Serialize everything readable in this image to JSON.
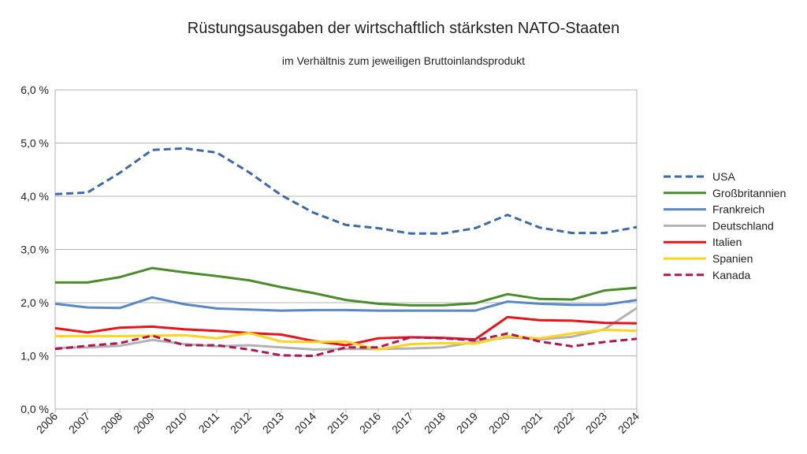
{
  "chart_data": {
    "type": "line",
    "title": "Rüstungsausgaben der wirtschaftlich stärksten NATO-Staaten",
    "subtitle": "im Verhältnis zum jeweiligen Bruttoinlandsprodukt",
    "xlabel": "",
    "ylabel": "",
    "x": [
      "2006",
      "2007",
      "2008",
      "2009",
      "2010",
      "2011",
      "2012",
      "2013",
      "2014",
      "2015",
      "2016",
      "2017",
      "2018",
      "2019",
      "2020",
      "2021",
      "2022",
      "2023",
      "2024"
    ],
    "ylim": [
      0,
      6
    ],
    "y_ticks": [
      0,
      1,
      2,
      3,
      4,
      5,
      6
    ],
    "y_tick_labels": [
      "0,0 %",
      "1,0 %",
      "2,0 %",
      "3,0 %",
      "4,0 %",
      "5,0 %",
      "6,0 %"
    ],
    "y_tick_labels_alt": {
      "4": "4.0 %",
      "5": "5.0 %"
    },
    "grid": "horizontal",
    "legend_position": "right",
    "series": [
      {
        "name": "USA",
        "color": "#3c69a8",
        "dashed": true,
        "values": [
          4.04,
          4.07,
          4.44,
          4.87,
          4.9,
          4.82,
          4.45,
          4.02,
          3.69,
          3.46,
          3.4,
          3.3,
          3.3,
          3.4,
          3.65,
          3.41,
          3.31,
          3.31,
          3.42
        ]
      },
      {
        "name": "Großbritannien",
        "color": "#4a8c2a",
        "dashed": false,
        "values": [
          2.38,
          2.38,
          2.48,
          2.65,
          2.57,
          2.5,
          2.42,
          2.29,
          2.18,
          2.05,
          1.98,
          1.95,
          1.95,
          1.99,
          2.16,
          2.07,
          2.06,
          2.23,
          2.28
        ]
      },
      {
        "name": "Frankreich",
        "color": "#5a87c5",
        "dashed": false,
        "values": [
          1.98,
          1.91,
          1.9,
          2.1,
          1.97,
          1.89,
          1.87,
          1.85,
          1.86,
          1.86,
          1.85,
          1.85,
          1.85,
          1.85,
          2.02,
          1.98,
          1.96,
          1.96,
          2.05
        ]
      },
      {
        "name": "Deutschland",
        "color": "#b2b2b2",
        "dashed": false,
        "values": [
          1.15,
          1.16,
          1.19,
          1.3,
          1.22,
          1.18,
          1.2,
          1.16,
          1.12,
          1.13,
          1.13,
          1.14,
          1.16,
          1.26,
          1.35,
          1.31,
          1.36,
          1.5,
          1.9
        ]
      },
      {
        "name": "Italien",
        "color": "#e8141a",
        "dashed": false,
        "values": [
          1.52,
          1.44,
          1.53,
          1.55,
          1.5,
          1.47,
          1.43,
          1.4,
          1.28,
          1.2,
          1.33,
          1.35,
          1.34,
          1.31,
          1.73,
          1.67,
          1.66,
          1.62,
          1.61
        ]
      },
      {
        "name": "Spanien",
        "color": "#ffd320",
        "dashed": false,
        "values": [
          1.37,
          1.37,
          1.37,
          1.38,
          1.39,
          1.33,
          1.43,
          1.27,
          1.26,
          1.27,
          1.12,
          1.22,
          1.24,
          1.23,
          1.37,
          1.33,
          1.42,
          1.49,
          1.47
        ]
      },
      {
        "name": "Kanada",
        "color": "#b0174e",
        "dashed": true,
        "values": [
          1.13,
          1.19,
          1.24,
          1.38,
          1.2,
          1.2,
          1.12,
          1.01,
          1.0,
          1.16,
          1.16,
          1.35,
          1.33,
          1.29,
          1.42,
          1.27,
          1.18,
          1.26,
          1.32
        ]
      }
    ]
  }
}
